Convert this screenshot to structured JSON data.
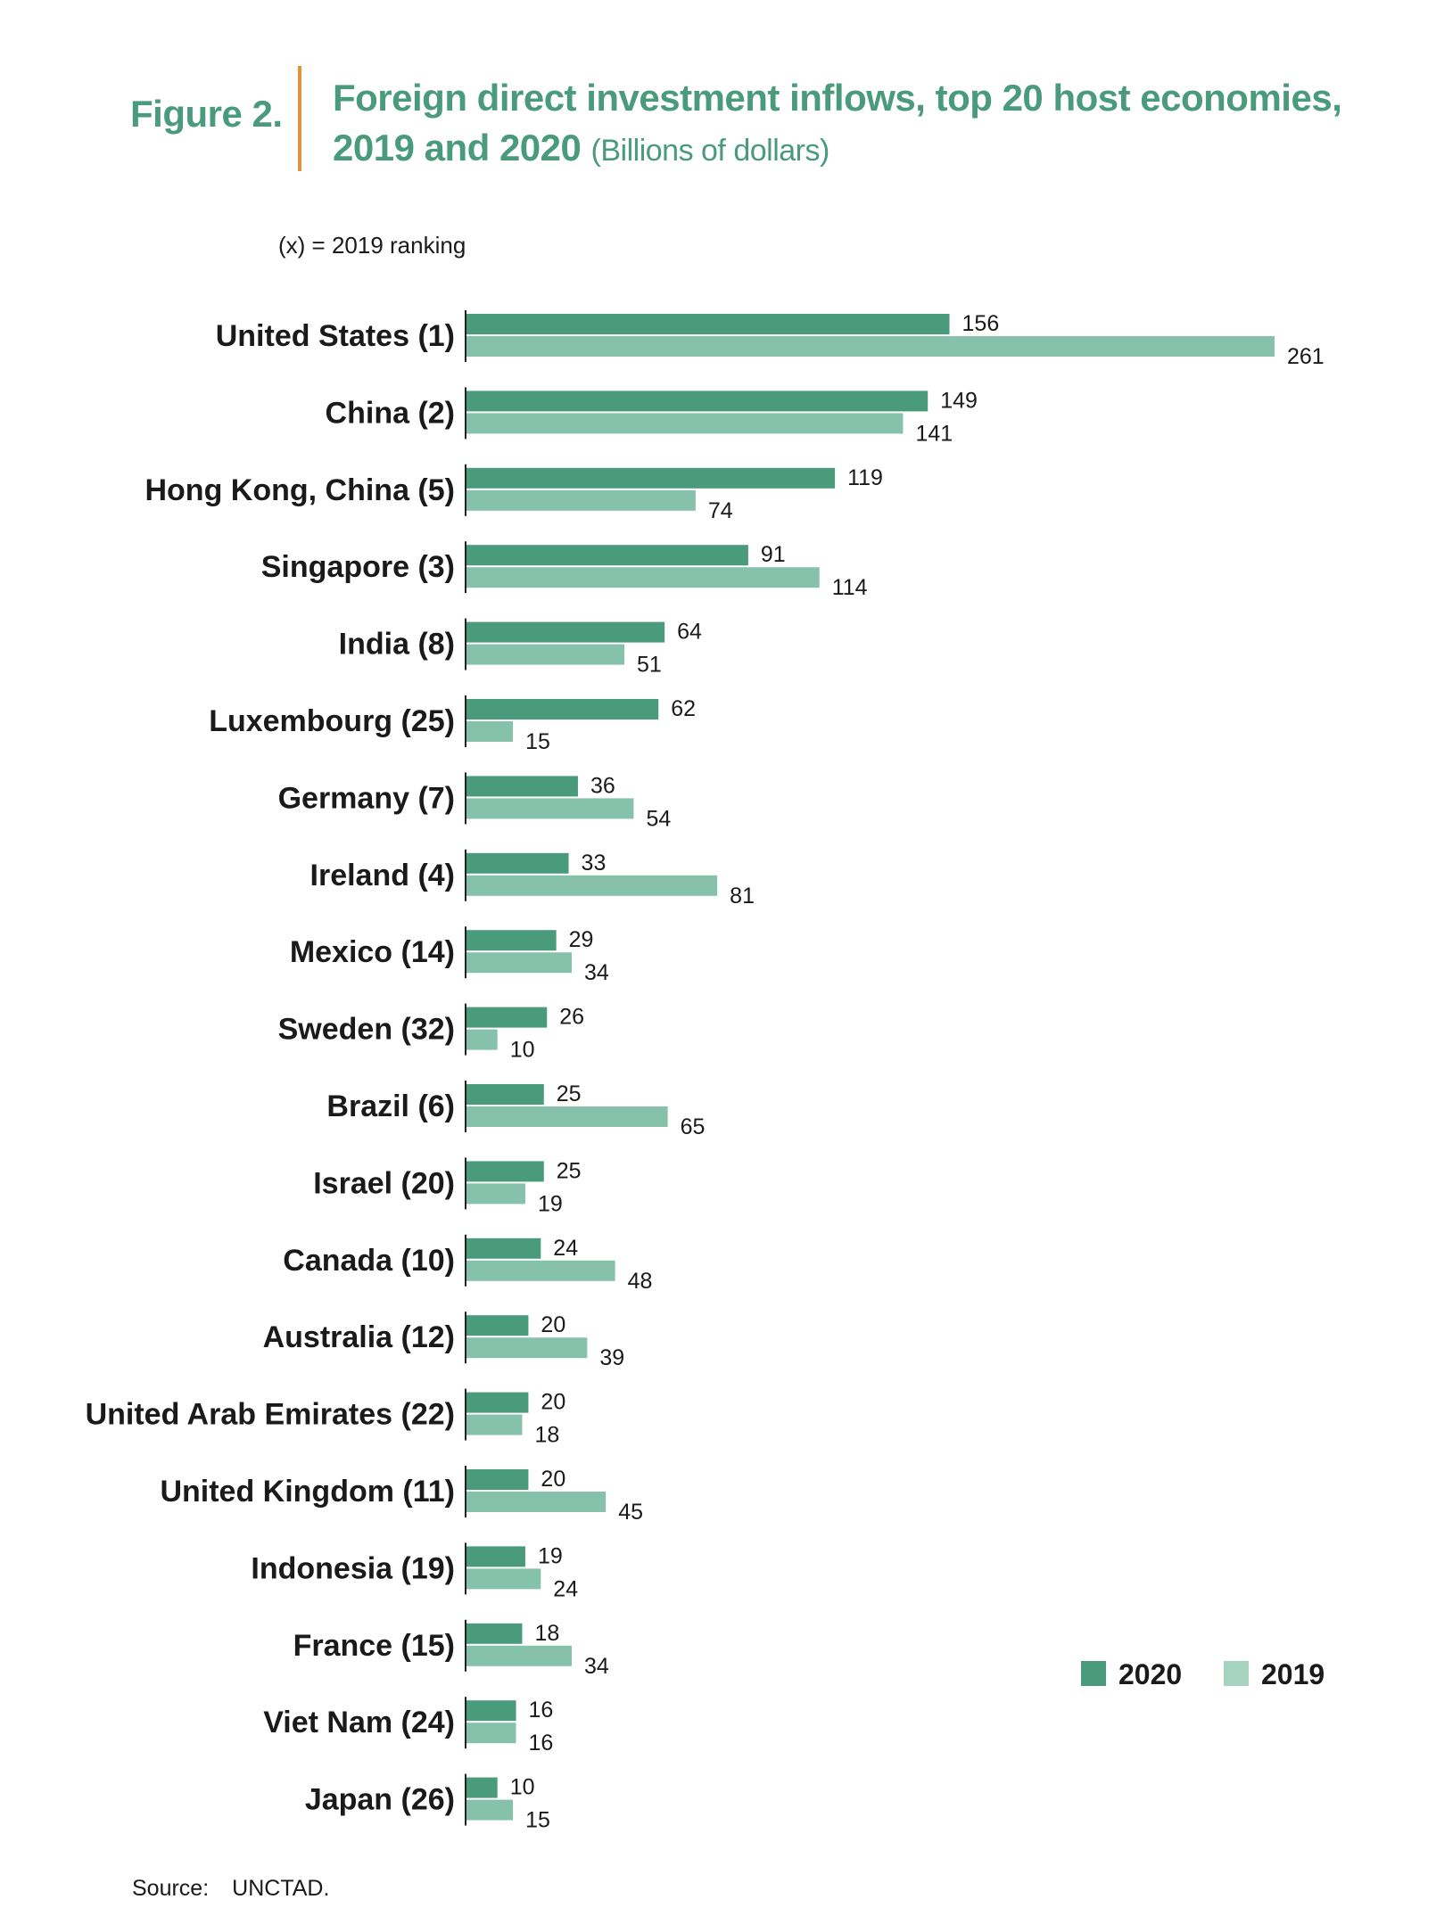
{
  "figure": {
    "label": "Figure 2.",
    "title_line1": "Foreign direct investment inflows, top 20 host economies,",
    "title_line2": "2019 and 2020",
    "unit": "(Billions of dollars)",
    "ranking_note": "(x) = 2019  ranking",
    "source_label": "Source:",
    "source_value": "UNCTAD."
  },
  "colors": {
    "bar_2020": "#4a9a7c",
    "bar_2019": "#86c2ab",
    "legend_2019": "#a5d3c0",
    "title": "#4a9a7c",
    "rule": "#e6923a"
  },
  "chart_data": {
    "type": "bar",
    "orientation": "horizontal",
    "title": "Foreign direct investment inflows, top 20 host economies, 2019 and 2020",
    "unit": "Billions of dollars",
    "categories": [
      "United States (1)",
      "China (2)",
      "Hong Kong, China (5)",
      "Singapore (3)",
      "India (8)",
      "Luxembourg (25)",
      "Germany (7)",
      "Ireland (4)",
      "Mexico (14)",
      "Sweden (32)",
      "Brazil (6)",
      "Israel (20)",
      "Canada (10)",
      "Australia (12)",
      "United Arab Emirates (22)",
      "United Kingdom (11)",
      "Indonesia (19)",
      "France (15)",
      "Viet Nam (24)",
      "Japan (26)"
    ],
    "series": [
      {
        "name": "2020",
        "values": [
          156,
          149,
          119,
          91,
          64,
          62,
          36,
          33,
          29,
          26,
          25,
          25,
          24,
          20,
          20,
          20,
          19,
          18,
          16,
          10
        ]
      },
      {
        "name": "2019",
        "values": [
          261,
          141,
          74,
          114,
          51,
          15,
          54,
          81,
          34,
          10,
          65,
          19,
          48,
          39,
          18,
          45,
          24,
          34,
          16,
          15
        ]
      }
    ],
    "xlim": [
      0,
      261
    ],
    "legend_position": "bottom-right",
    "grid": false
  }
}
